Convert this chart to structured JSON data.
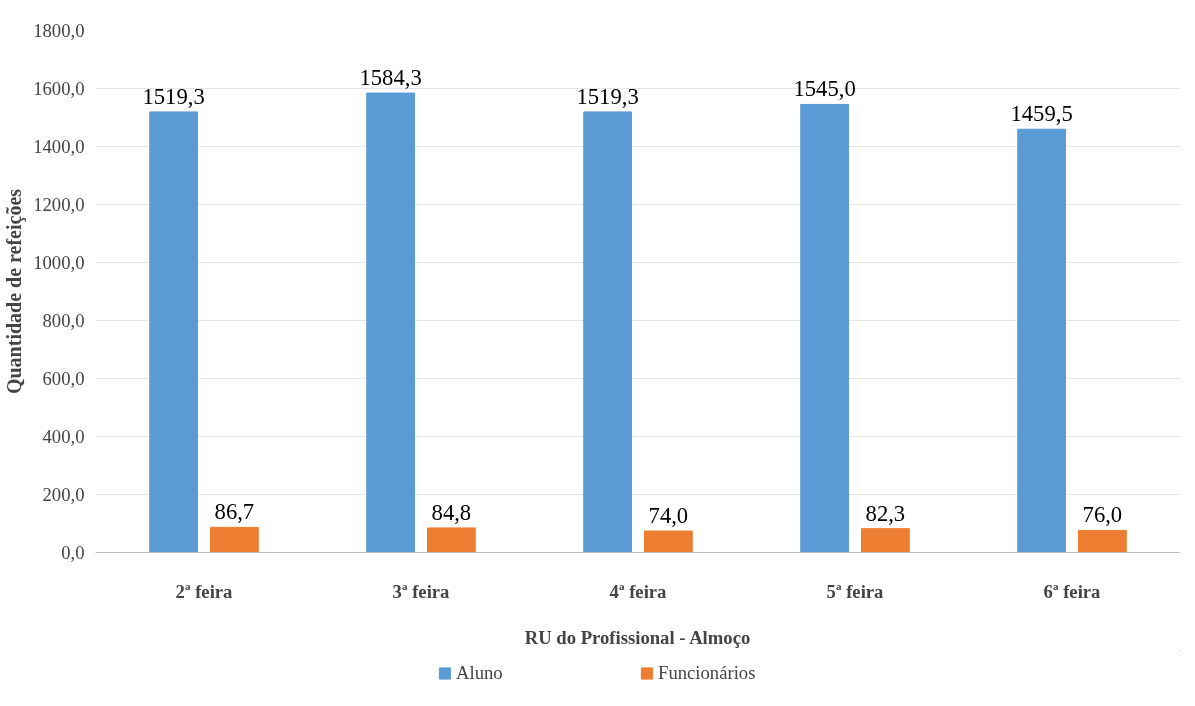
{
  "chart_data": {
    "type": "bar",
    "xlabel": "RU do Profissional - Almoço",
    "ylabel": "Quantidade de refeições",
    "categories": [
      "2ª feira",
      "3ª feira",
      "4ª feira",
      "5ª feira",
      "6ª feira"
    ],
    "series": [
      {
        "name": "Aluno",
        "color": "#5b9bd5",
        "values": [
          1519.3,
          1584.3,
          1519.3,
          1545.0,
          1459.5
        ],
        "value_labels": [
          "1519,3",
          "1584,3",
          "1519,3",
          "1545,0",
          "1459,5"
        ]
      },
      {
        "name": "Funcionários",
        "color": "#ed7d31",
        "values": [
          86.7,
          84.8,
          74.0,
          82.3,
          76.0
        ],
        "value_labels": [
          "86,7",
          "84,8",
          "74,0",
          "82,3",
          "76,0"
        ]
      }
    ],
    "ylim": [
      0,
      1800
    ],
    "yticks": [
      {
        "value": 0,
        "label": "0,0"
      },
      {
        "value": 200,
        "label": "200,0"
      },
      {
        "value": 400,
        "label": "400,0"
      },
      {
        "value": 600,
        "label": "600,0"
      },
      {
        "value": 800,
        "label": "800,0"
      },
      {
        "value": 1000,
        "label": "1000,0"
      },
      {
        "value": 1200,
        "label": "1200,0"
      },
      {
        "value": 1400,
        "label": "1400,0"
      },
      {
        "value": 1600,
        "label": "1600,0"
      },
      {
        "value": 1800,
        "label": "1800,0"
      }
    ],
    "grid": "y",
    "legend": "bottom"
  }
}
